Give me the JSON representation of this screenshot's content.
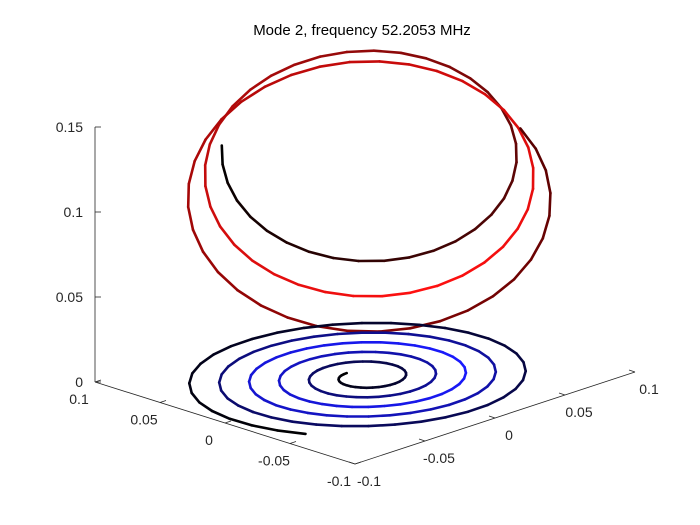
{
  "chart_data": {
    "type": "line3d",
    "title": "Mode 2, frequency 52.2053 MHz",
    "xlabel": "",
    "ylabel": "",
    "zlabel": "",
    "xlim": [
      -0.1,
      0.1
    ],
    "ylim": [
      -0.1,
      0.1
    ],
    "zlim": [
      0,
      0.15
    ],
    "x_ticks": [
      -0.1,
      -0.05,
      0,
      0.05,
      0.1
    ],
    "x_tick_labels": [
      "-0.1",
      "-0.05",
      "0",
      "0.05",
      "0.1"
    ],
    "y_ticks": [
      -0.1,
      -0.05,
      0,
      0.05,
      0.1
    ],
    "y_tick_labels": [
      "-0.1",
      "-0.05",
      "0",
      "0.05",
      "0.1"
    ],
    "z_ticks": [
      0,
      0.05,
      0.1,
      0.15
    ],
    "z_tick_labels": [
      "0",
      "0.05",
      "0.1",
      "0.15"
    ],
    "grid": false,
    "series": [
      {
        "name": "upper-helix",
        "shape": "helix",
        "center": [
          0,
          0
        ],
        "r_start": 0.075,
        "r_end": 0.098,
        "turns": 2.6,
        "start_angle_deg": 135,
        "z_start": 0.135,
        "z_end": 0.1,
        "tilt_z_per_x": 0.3,
        "tilt_z_per_y": 0.35,
        "color_start": "#000000",
        "color_mid": "#ff1010",
        "color_end": "#550000"
      },
      {
        "name": "lower-spiral",
        "shape": "spiral",
        "center": [
          0,
          0
        ],
        "r_start": 0.012,
        "r_end": 0.095,
        "turns": 5.3,
        "start_angle_deg": 100,
        "z": 0,
        "color_start": "#000000",
        "color_mid": "#1a1aff",
        "color_end": "#000000"
      }
    ]
  }
}
